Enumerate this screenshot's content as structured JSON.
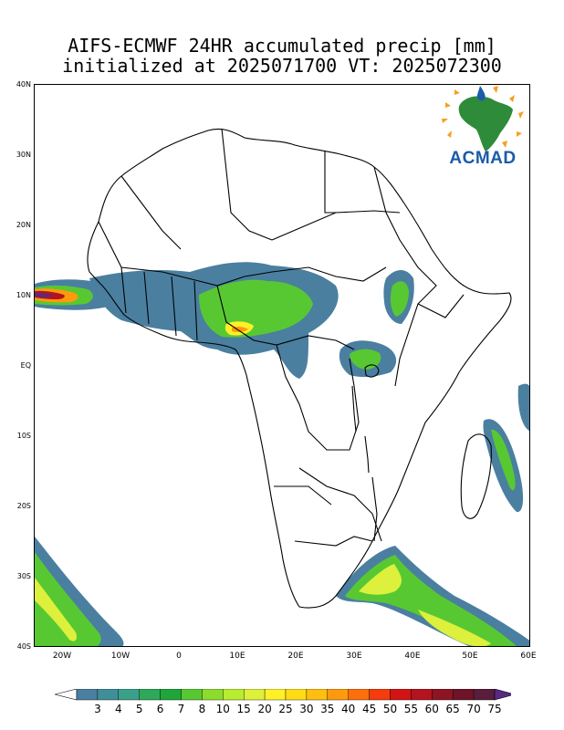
{
  "title": {
    "line1": "AIFS-ECMWF 24HR accumulated precip [mm]",
    "line2": "initialized at 2025071700 VT: 2025072300"
  },
  "lat_labels": [
    "40N",
    "30N",
    "20N",
    "10N",
    "EQ",
    "10S",
    "20S",
    "30S",
    "40S"
  ],
  "lon_labels": [
    "20W",
    "10W",
    "0",
    "10E",
    "20E",
    "30E",
    "40E",
    "50E",
    "60E"
  ],
  "colorbar": {
    "values": [
      "3",
      "4",
      "5",
      "6",
      "7",
      "8",
      "10",
      "15",
      "20",
      "25",
      "30",
      "35",
      "40",
      "45",
      "50",
      "55",
      "60",
      "65",
      "70",
      "75"
    ],
    "colors": [
      "#ffffff",
      "#4a7fa0",
      "#3f8f9a",
      "#3aa08a",
      "#2ea85a",
      "#1fa53a",
      "#58c832",
      "#8cdc2c",
      "#b8ec30",
      "#dcf03c",
      "#fff028",
      "#ffdc14",
      "#ffbe10",
      "#ff9a0c",
      "#ff6e0c",
      "#f53c0c",
      "#d21414",
      "#b4141e",
      "#8c1423",
      "#6e1428",
      "#581e3c",
      "#5a2a82"
    ]
  },
  "logo": {
    "text": "ACMAD",
    "brand_color": "#1a5ca8",
    "accent_color": "#f4a020"
  }
}
